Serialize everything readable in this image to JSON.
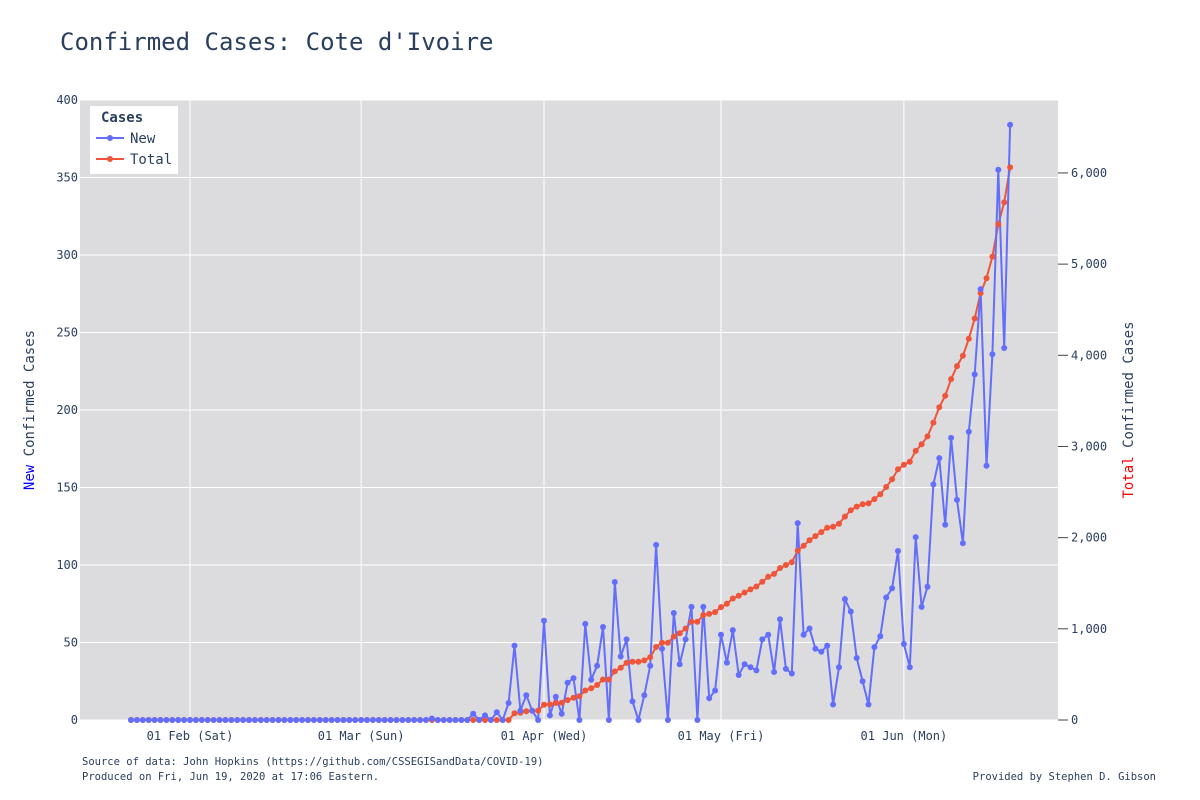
{
  "title": "Confirmed Cases: Cote d'Ivoire",
  "footer": {
    "source": "Source of data: John Hopkins (https://github.com/CSSEGISandData/COVID-19)",
    "produced": "Produced on Fri, Jun 19, 2020 at 17:06 Eastern.",
    "credit": "Provided by Stephen D. Gibson"
  },
  "chart_data": {
    "type": "line",
    "x_start": "2020-01-22",
    "x_ticks": [
      {
        "date": "2020-02-01",
        "label": "01 Feb (Sat)"
      },
      {
        "date": "2020-03-01",
        "label": "01 Mar (Sun)"
      },
      {
        "date": "2020-04-01",
        "label": "01 Apr (Wed)"
      },
      {
        "date": "2020-05-01",
        "label": "01 May (Fri)"
      },
      {
        "date": "2020-06-01",
        "label": "01 Jun (Mon)"
      }
    ],
    "y_left": {
      "label_prefix": "New",
      "label_suffix": " Confirmed Cases",
      "range": [
        0,
        400
      ],
      "ticks": [
        0,
        50,
        100,
        150,
        200,
        250,
        300,
        350,
        400
      ],
      "tick_labels": [
        "0",
        "50",
        "100",
        "150",
        "200",
        "250",
        "300",
        "350",
        "400"
      ]
    },
    "y_right": {
      "label_prefix": "Total",
      "label_suffix": " Confirmed Cases",
      "range": [
        0,
        6800
      ],
      "ticks": [
        0,
        1000,
        2000,
        3000,
        4000,
        5000,
        6000
      ],
      "tick_labels": [
        "0",
        "1,000",
        "2,000",
        "3,000",
        "4,000",
        "5,000",
        "6,000"
      ]
    },
    "legend": {
      "title": "Cases",
      "position": "top-left"
    },
    "grid": true,
    "colors": {
      "new": "#636efa",
      "total": "#ef553b",
      "new_label": "#0000ff",
      "total_label": "#ff0000",
      "plot_bg": "#dcdcdf"
    },
    "series": [
      {
        "name": "New",
        "axis": "left",
        "values": [
          0,
          0,
          0,
          0,
          0,
          0,
          0,
          0,
          0,
          0,
          0,
          0,
          0,
          0,
          0,
          0,
          0,
          0,
          0,
          0,
          0,
          0,
          0,
          0,
          0,
          0,
          0,
          0,
          0,
          0,
          0,
          0,
          0,
          0,
          0,
          0,
          0,
          0,
          0,
          0,
          0,
          0,
          0,
          0,
          0,
          0,
          0,
          0,
          0,
          0,
          0,
          1,
          0,
          0,
          0,
          0,
          0,
          0,
          4,
          0,
          3,
          0,
          5,
          0,
          11,
          48,
          6,
          16,
          6,
          0,
          64,
          3,
          15,
          4,
          24,
          27,
          0,
          62,
          26,
          35,
          60,
          0,
          89,
          41,
          52,
          12,
          0,
          16,
          35,
          113,
          46,
          0,
          69,
          36,
          52,
          73,
          0,
          73,
          14,
          19,
          55,
          37,
          58,
          29,
          36,
          34,
          32,
          52,
          55,
          31,
          65,
          33,
          30,
          127,
          55,
          59,
          46,
          44,
          48,
          10,
          34,
          78,
          70,
          40,
          25,
          10,
          47,
          54,
          79,
          85,
          109,
          49,
          34,
          118,
          73,
          86,
          152,
          169,
          126,
          182,
          142,
          114,
          186,
          223,
          278,
          164,
          236,
          355,
          240,
          384
        ]
      },
      {
        "name": "Total",
        "axis": "right",
        "values": [
          0,
          0,
          0,
          0,
          0,
          0,
          0,
          0,
          0,
          0,
          0,
          0,
          0,
          0,
          0,
          0,
          0,
          0,
          0,
          0,
          0,
          0,
          0,
          0,
          0,
          0,
          0,
          0,
          0,
          0,
          0,
          0,
          0,
          0,
          0,
          0,
          0,
          0,
          0,
          0,
          0,
          0,
          0,
          0,
          0,
          0,
          0,
          0,
          0,
          0,
          0,
          0,
          0,
          0,
          0,
          0,
          0,
          0,
          0,
          0,
          0,
          0,
          0,
          0,
          0,
          73,
          80,
          96,
          101,
          101,
          168,
          171,
          186,
          190,
          218,
          245,
          261,
          323,
          349,
          384,
          444,
          444,
          533,
          574,
          626,
          638,
          638,
          654,
          688,
          801,
          847,
          847,
          916,
          952,
          1004,
          1077,
          1077,
          1150,
          1164,
          1183,
          1238,
          1275,
          1333,
          1362,
          1398,
          1432,
          1464,
          1516,
          1571,
          1602,
          1667,
          1700,
          1730,
          1857,
          1912,
          1971,
          2017,
          2061,
          2109,
          2119,
          2153,
          2231,
          2301,
          2341,
          2366,
          2376,
          2423,
          2477,
          2556,
          2641,
          2750,
          2799,
          2833,
          2951,
          3024,
          3110,
          3262,
          3431,
          3557,
          3739,
          3881,
          3995,
          4181,
          4404,
          4682,
          4846,
          5082,
          5437,
          5677,
          6061
        ]
      }
    ]
  }
}
